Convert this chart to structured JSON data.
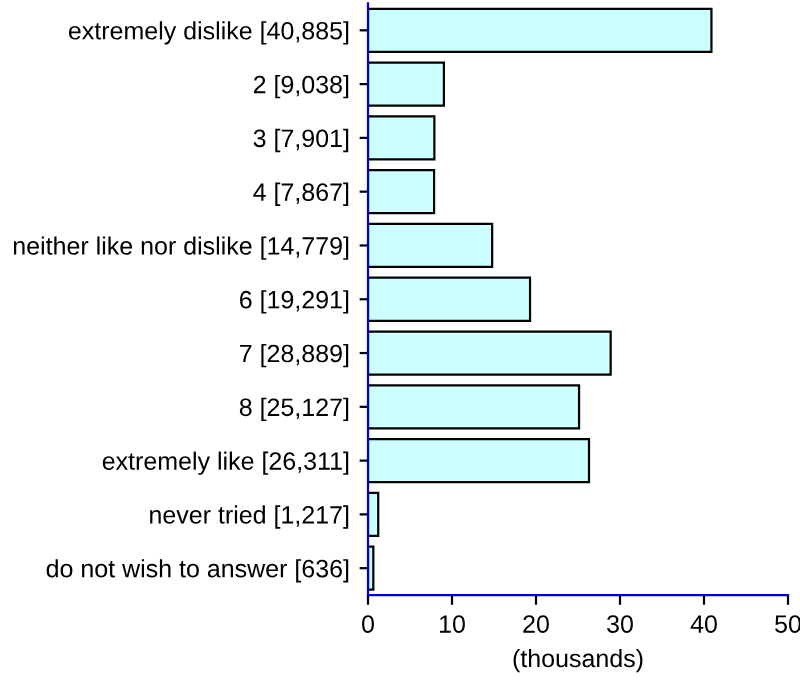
{
  "chart_data": {
    "type": "bar",
    "orientation": "horizontal",
    "xlabel": "(thousands)",
    "categories": [
      "extremely dislike [40,885]",
      "2 [9,038]",
      "3 [7,901]",
      "4 [7,867]",
      "neither like nor dislike [14,779]",
      "6 [19,291]",
      "7 [28,889]",
      "8 [25,127]",
      "extremely like [26,311]",
      "never tried [1,217]",
      "do not wish to answer [636]"
    ],
    "values": [
      40.885,
      9.038,
      7.901,
      7.867,
      14.779,
      19.291,
      28.889,
      25.127,
      26.311,
      1.217,
      0.636
    ],
    "color": "#ccffff",
    "xlim": [
      0,
      50
    ],
    "xticks": [
      0,
      10,
      20,
      30,
      40,
      50
    ],
    "grid": false,
    "legend": false
  }
}
